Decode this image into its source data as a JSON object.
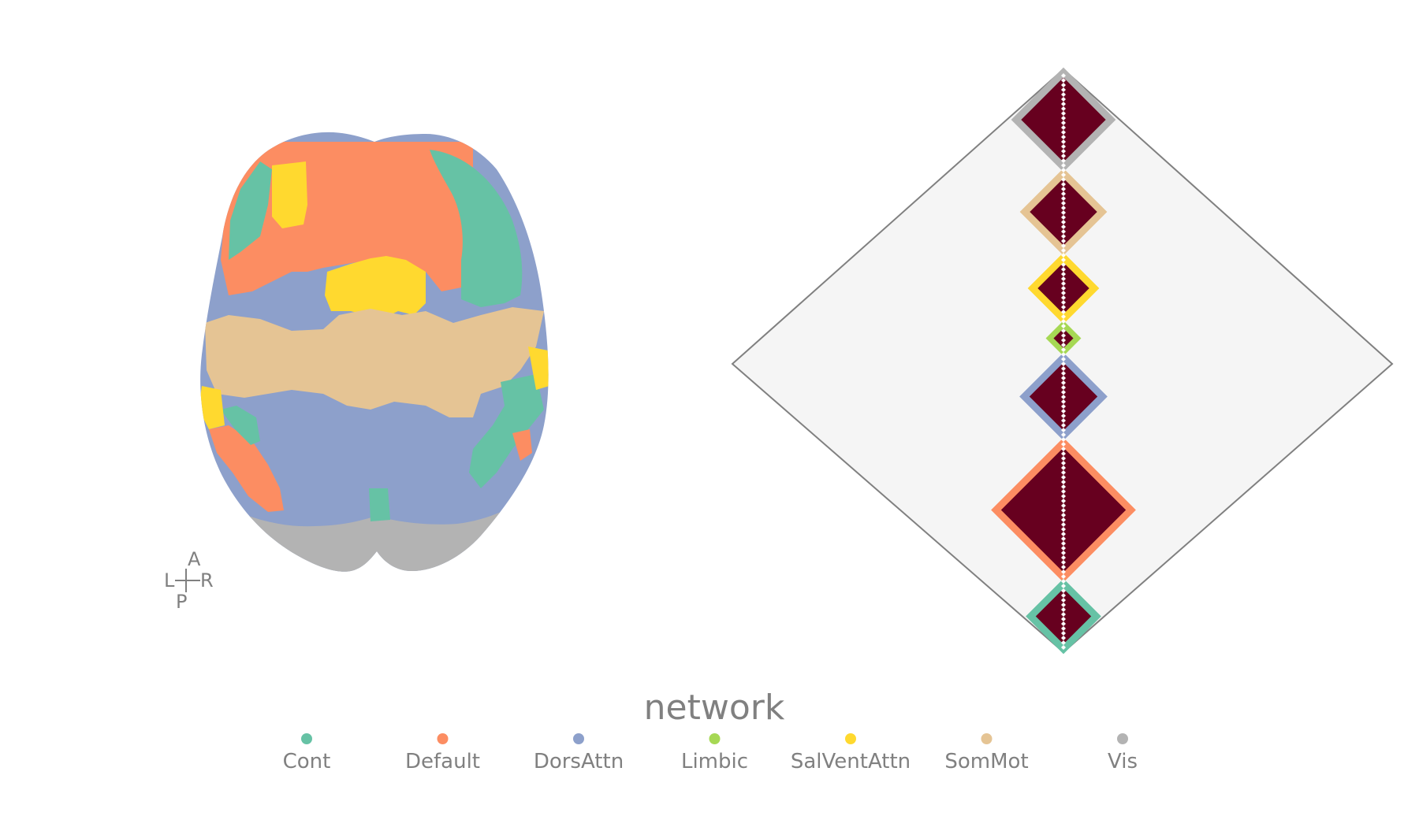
{
  "orientation": {
    "anterior": "A",
    "posterior": "P",
    "left": "L",
    "right": "R"
  },
  "legend": {
    "title": "network",
    "items": [
      {
        "name": "Cont",
        "color": "#66c2a5"
      },
      {
        "name": "Default",
        "color": "#fc8d62"
      },
      {
        "name": "DorsAttn",
        "color": "#8da0cb"
      },
      {
        "name": "Limbic",
        "color": "#a6d854"
      },
      {
        "name": "SalVentAttn",
        "color": "#ffd92f"
      },
      {
        "name": "SomMot",
        "color": "#e5c494"
      },
      {
        "name": "Vis",
        "color": "#b3b3b3"
      }
    ]
  },
  "matrix": {
    "background_color": "#f5f5f5",
    "block_color": "#67001f",
    "diagonal_color": "#ffffff",
    "network_order_top_to_bottom": [
      "Vis",
      "SomMot",
      "SalVentAttn",
      "Limbic",
      "DorsAttn",
      "Default",
      "Cont"
    ]
  }
}
